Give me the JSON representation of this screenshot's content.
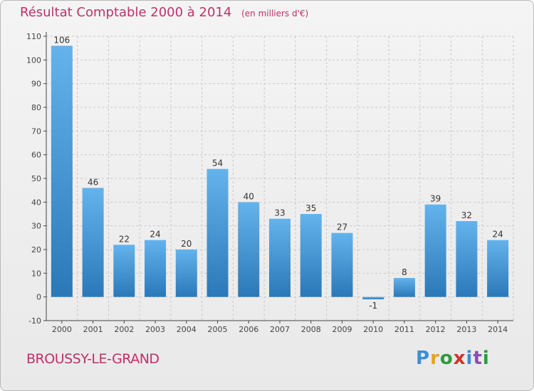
{
  "chart_data": {
    "type": "bar",
    "title": "Résultat Comptable 2000 à 2014",
    "subtitle": "(en milliers d'€)",
    "categories": [
      "2000",
      "2001",
      "2002",
      "2003",
      "2004",
      "2005",
      "2006",
      "2007",
      "2008",
      "2009",
      "2010",
      "2011",
      "2012",
      "2013",
      "2014"
    ],
    "values": [
      106,
      46,
      22,
      24,
      20,
      54,
      40,
      33,
      35,
      27,
      -1,
      8,
      39,
      32,
      24
    ],
    "value_labels": [
      "106",
      "46",
      "22",
      "24",
      "20",
      "54",
      "40",
      "33",
      "35",
      "27",
      "-1",
      "8",
      "39",
      "32",
      "24"
    ],
    "ylim": [
      -10,
      110
    ],
    "yticks": [
      -10,
      0,
      10,
      20,
      30,
      40,
      50,
      60,
      70,
      80,
      90,
      100,
      110
    ],
    "xlabel": "",
    "ylabel": "",
    "grid": true
  },
  "location": "BROUSSY-LE-GRAND",
  "brand": {
    "letters": [
      "P",
      "r",
      "o",
      "x",
      "i",
      "t",
      "i"
    ],
    "colors": [
      "#3a8fd6",
      "#e8a21c",
      "#2f9a3c",
      "#d4312b",
      "#3a8fd6",
      "#8a4fb0",
      "#2f9a3c"
    ]
  },
  "colors": {
    "bar_top": "#64b3ec",
    "bar_bottom": "#2b78b8",
    "title": "#c0306a",
    "axis": "#444444",
    "grid": "#c9c9c9"
  }
}
